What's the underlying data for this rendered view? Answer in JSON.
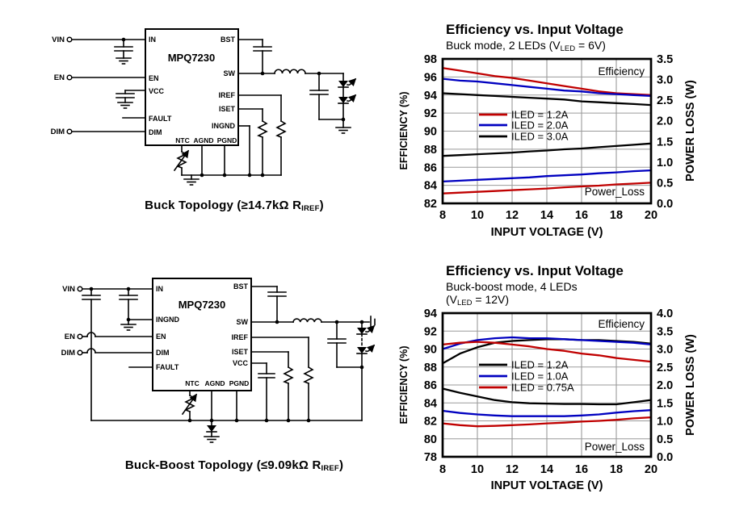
{
  "colors": {
    "red": "#c00000",
    "blue": "#0000c0",
    "black": "#000000",
    "grid": "#9a9a9a"
  },
  "circuit_buck": {
    "part_number": "MPQ7230",
    "terminals": [
      "VIN",
      "EN",
      "DIM"
    ],
    "left_pins": [
      "IN",
      "EN",
      "VCC",
      "FAULT",
      "DIM"
    ],
    "right_pins": [
      "BST",
      "SW",
      "IREF",
      "ISET",
      "INGND"
    ],
    "bottom_pins": [
      "NTC",
      "AGND",
      "PGND"
    ],
    "caption_pre": "Buck Topology (≥14.7kΩ R",
    "caption_sub": "IREF",
    "caption_post": ")"
  },
  "circuit_buckboost": {
    "part_number": "MPQ7230",
    "terminals": [
      "VIN",
      "EN",
      "DIM"
    ],
    "left_pins": [
      "IN",
      "INGND",
      "EN",
      "DIM",
      "FAULT"
    ],
    "right_pins": [
      "BST",
      "SW",
      "IREF",
      "ISET",
      "VCC"
    ],
    "bottom_pins": [
      "NTC",
      "AGND",
      "PGND"
    ],
    "caption_pre": "Buck-Boost Topology (≤9.09kΩ R",
    "caption_sub": "IREF",
    "caption_post": ")"
  },
  "chart_data": [
    {
      "type": "line",
      "title": "Efficiency vs. Input Voltage",
      "subtitle_pre": "Buck mode, 2 LEDs (V",
      "subtitle_sub": "LED",
      "subtitle_post": " = 6V)",
      "xlabel": "INPUT VOLTAGE (V)",
      "ylabel_left": "EFFICIENCY (%)",
      "ylabel_right": "POWER LOSS (W)",
      "xlim": [
        8,
        20
      ],
      "xticks": [
        "8",
        "10",
        "12",
        "14",
        "16",
        "18",
        "20"
      ],
      "ylim_left": [
        82,
        98
      ],
      "yticks_left": [
        "98",
        "96",
        "94",
        "92",
        "90",
        "88",
        "86",
        "84",
        "82"
      ],
      "ylim_right": [
        0,
        3.5
      ],
      "yticks_right": [
        "3.5",
        "3.0",
        "2.5",
        "2.0",
        "1.5",
        "1.0",
        "0.5",
        "0.0"
      ],
      "grid": true,
      "legend_position": "center-left",
      "annotation_top": "Efficiency",
      "annotation_bottom": "Power_Loss",
      "legend": [
        {
          "label": "ILED = 1.2A",
          "color": "#c00000"
        },
        {
          "label": "ILED = 2.0A",
          "color": "#0000c0"
        },
        {
          "label": "ILED = 3.0A",
          "color": "#000000"
        }
      ],
      "x": [
        8,
        9,
        10,
        11,
        12,
        13,
        14,
        15,
        16,
        17,
        18,
        19,
        20
      ],
      "efficiency_series": [
        {
          "name": "ILED = 1.2A",
          "color": "#c00000",
          "values": [
            97.0,
            96.7,
            96.4,
            96.1,
            95.9,
            95.6,
            95.3,
            95.0,
            94.7,
            94.4,
            94.2,
            94.1,
            94.0
          ]
        },
        {
          "name": "ILED = 2.0A",
          "color": "#0000c0",
          "values": [
            95.8,
            95.6,
            95.5,
            95.3,
            95.1,
            94.9,
            94.7,
            94.5,
            94.4,
            94.2,
            94.1,
            94.0,
            93.9
          ]
        },
        {
          "name": "ILED = 3.0A",
          "color": "#000000",
          "values": [
            94.2,
            94.1,
            94.0,
            93.9,
            93.8,
            93.7,
            93.6,
            93.5,
            93.3,
            93.2,
            93.1,
            93.0,
            92.9
          ]
        }
      ],
      "power_loss_series": [
        {
          "name": "ILED = 1.2A",
          "color": "#c00000",
          "values": [
            0.24,
            0.26,
            0.28,
            0.3,
            0.32,
            0.34,
            0.36,
            0.39,
            0.41,
            0.43,
            0.46,
            0.48,
            0.5
          ]
        },
        {
          "name": "ILED = 2.0A",
          "color": "#0000c0",
          "values": [
            0.53,
            0.55,
            0.57,
            0.59,
            0.61,
            0.63,
            0.66,
            0.68,
            0.7,
            0.73,
            0.75,
            0.78,
            0.8
          ]
        },
        {
          "name": "ILED = 3.0A",
          "color": "#000000",
          "values": [
            1.15,
            1.17,
            1.19,
            1.21,
            1.23,
            1.26,
            1.28,
            1.31,
            1.33,
            1.36,
            1.39,
            1.42,
            1.45
          ]
        }
      ]
    },
    {
      "type": "line",
      "title": "Efficiency vs. Input Voltage",
      "subtitle_line1": "Buck-boost mode, 4 LEDs",
      "subtitle2_pre": "(V",
      "subtitle2_sub": "LED",
      "subtitle2_post": " = 12V)",
      "xlabel": "INPUT VOLTAGE (V)",
      "ylabel_left": "EFFICIENCY (%)",
      "ylabel_right": "POWER LOSS (W)",
      "xlim": [
        8,
        20
      ],
      "xticks": [
        "8",
        "10",
        "12",
        "14",
        "16",
        "18",
        "20"
      ],
      "ylim_left": [
        78,
        94
      ],
      "yticks_left": [
        "94",
        "92",
        "90",
        "88",
        "86",
        "84",
        "82",
        "80",
        "78"
      ],
      "ylim_right": [
        0,
        4
      ],
      "yticks_right": [
        "4.0",
        "3.5",
        "3.0",
        "2.5",
        "2.0",
        "1.5",
        "1.0",
        "0.5",
        "0.0"
      ],
      "grid": true,
      "legend_position": "center-left",
      "annotation_top": "Efficiency",
      "annotation_bottom": "Power_Loss",
      "legend": [
        {
          "label": "ILED = 1.2A",
          "color": "#000000"
        },
        {
          "label": "ILED = 1.0A",
          "color": "#0000c0"
        },
        {
          "label": "ILED = 0.75A",
          "color": "#c00000"
        }
      ],
      "x": [
        8,
        9,
        10,
        11,
        12,
        13,
        14,
        15,
        16,
        17,
        18,
        19,
        20
      ],
      "efficiency_series": [
        {
          "name": "ILED = 1.2A",
          "color": "#000000",
          "values": [
            88.4,
            89.5,
            90.2,
            90.7,
            90.9,
            91.0,
            91.1,
            91.1,
            91.0,
            91.0,
            90.9,
            90.8,
            90.6
          ]
        },
        {
          "name": "ILED = 1.0A",
          "color": "#0000c0",
          "values": [
            90.0,
            90.6,
            91.0,
            91.2,
            91.3,
            91.2,
            91.2,
            91.1,
            91.0,
            90.9,
            90.8,
            90.7,
            90.5
          ]
        },
        {
          "name": "ILED = 0.75A",
          "color": "#c00000",
          "values": [
            90.5,
            90.7,
            90.8,
            90.7,
            90.5,
            90.3,
            90.0,
            89.8,
            89.5,
            89.3,
            89.0,
            88.8,
            88.6
          ]
        }
      ],
      "power_loss_series": [
        {
          "name": "ILED = 1.2A",
          "color": "#000000",
          "values": [
            1.9,
            1.78,
            1.68,
            1.58,
            1.52,
            1.49,
            1.48,
            1.47,
            1.47,
            1.46,
            1.46,
            1.52,
            1.58
          ]
        },
        {
          "name": "ILED = 1.0A",
          "color": "#0000c0",
          "values": [
            1.28,
            1.22,
            1.18,
            1.15,
            1.13,
            1.13,
            1.13,
            1.13,
            1.15,
            1.18,
            1.23,
            1.27,
            1.3
          ]
        },
        {
          "name": "ILED = 0.75A",
          "color": "#c00000",
          "values": [
            0.93,
            0.88,
            0.85,
            0.86,
            0.88,
            0.9,
            0.93,
            0.95,
            0.98,
            1.0,
            1.03,
            1.07,
            1.1
          ]
        }
      ]
    }
  ]
}
